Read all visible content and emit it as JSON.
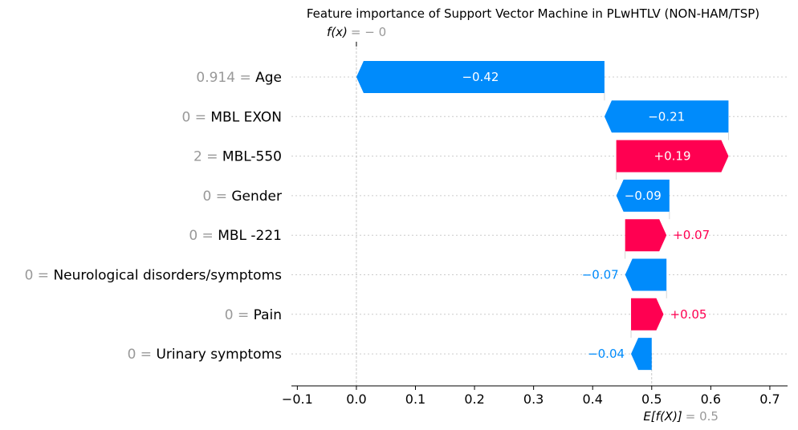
{
  "chart_data": {
    "type": "waterfall",
    "title": "Feature importance of Support Vector Machine in PLwHTLV (NON-HAM/TSP)",
    "fx_label": "f(x)",
    "fx_value_text": "= − 0",
    "fx_value": 0.0,
    "base_label": "E[f(X)]",
    "base_value_text": "= 0.5",
    "base_value": 0.5,
    "xlim": [
      -0.11,
      0.73
    ],
    "xticks": [
      -0.1,
      0.0,
      0.1,
      0.2,
      0.3,
      0.4,
      0.5,
      0.6,
      0.7
    ],
    "xtick_labels": [
      "−0.1",
      "0.0",
      "0.1",
      "0.2",
      "0.3",
      "0.4",
      "0.5",
      "0.6",
      "0.7"
    ],
    "grid": "dotted horizontal guides per feature row",
    "features": [
      {
        "name": "Age",
        "value": "0.914",
        "contribution": -0.42,
        "label": "−0.42",
        "start": 0.42,
        "end": 0.0
      },
      {
        "name": "MBL EXON",
        "value": "0",
        "contribution": -0.21,
        "label": "−0.21",
        "start": 0.63,
        "end": 0.42
      },
      {
        "name": "MBL-550",
        "value": "2",
        "contribution": 0.19,
        "label": "+0.19",
        "start": 0.44,
        "end": 0.63
      },
      {
        "name": "Gender",
        "value": "0",
        "contribution": -0.09,
        "label": "−0.09",
        "start": 0.53,
        "end": 0.44
      },
      {
        "name": "MBL -221",
        "value": "0",
        "contribution": 0.07,
        "label": "+0.07",
        "start": 0.455,
        "end": 0.525
      },
      {
        "name": "Neurological disorders/symptoms",
        "value": "0",
        "contribution": -0.07,
        "label": "−0.07",
        "start": 0.525,
        "end": 0.455
      },
      {
        "name": "Pain",
        "value": "0",
        "contribution": 0.05,
        "label": "+0.05",
        "start": 0.465,
        "end": 0.52
      },
      {
        "name": "Urinary symptoms",
        "value": "0",
        "contribution": -0.04,
        "label": "−0.04",
        "start": 0.5,
        "end": 0.465
      }
    ],
    "colors": {
      "positive": "#ff0051",
      "negative": "#008bfb",
      "value_text": "#999999",
      "guide": "#cccccc"
    }
  }
}
